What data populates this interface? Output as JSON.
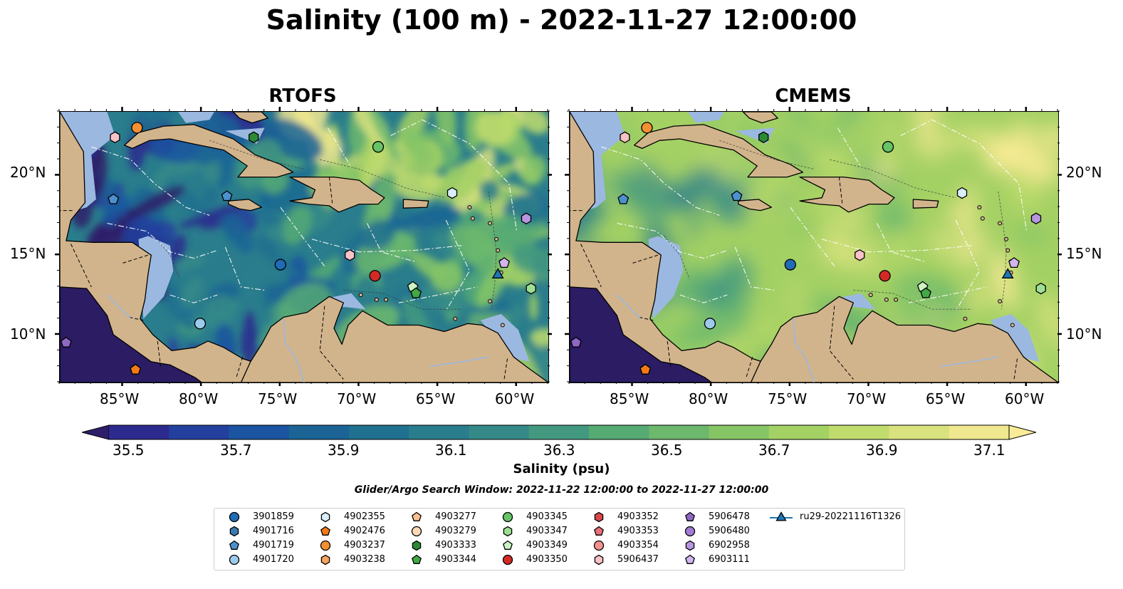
{
  "figure": {
    "title": "Salinity (100 m) - 2022-11-27 12:00:00",
    "search_window": "Glider/Argo Search Window: 2022-11-22 12:00:00 to 2022-11-27 12:00:00"
  },
  "panels": [
    {
      "title": "RTOFS",
      "model": "rtofs"
    },
    {
      "title": "CMEMS",
      "model": "cmems"
    }
  ],
  "axes": {
    "lon_ticks": [
      "85°W",
      "80°W",
      "75°W",
      "70°W",
      "65°W",
      "60°W"
    ],
    "lat_ticks": [
      "20°N",
      "15°N",
      "10°N"
    ],
    "lon_range": [
      -89,
      -58
    ],
    "lat_range": [
      7,
      24
    ]
  },
  "colorbar": {
    "label": "Salinity (psu)",
    "tick_labels": [
      "35.5",
      "35.7",
      "35.9",
      "36.1",
      "36.3",
      "36.5",
      "36.7",
      "36.9",
      "37.1"
    ],
    "range": [
      35.4,
      37.2
    ],
    "step": 0.1,
    "colors": [
      "#2e1e6a",
      "#2c2a8e",
      "#23409e",
      "#1b54a0",
      "#1b6495",
      "#20708f",
      "#2a7d8c",
      "#358a88",
      "#43997f",
      "#56aa74",
      "#6cb86d",
      "#86c566",
      "#a4d164",
      "#c0dc6c",
      "#d8e27e",
      "#f0e88f",
      "#faeb98"
    ],
    "extend": "both"
  },
  "colors": {
    "land": "#d2b48c",
    "ocean_shallow": "#9bb8e0",
    "deep_outside": "#2b1c63",
    "cuba": "#d2b48c"
  },
  "legend": [
    {
      "id": "3901859",
      "marker": "circle",
      "color": "#1f6bb5"
    },
    {
      "id": "4901716",
      "marker": "hexagon",
      "color": "#3a78b0"
    },
    {
      "id": "4901719",
      "marker": "pentagon",
      "color": "#4d90cf"
    },
    {
      "id": "4901720",
      "marker": "circle",
      "color": "#9ccbec"
    },
    {
      "id": "4902355",
      "marker": "hexagon",
      "color": "#d8eefa"
    },
    {
      "id": "4902476",
      "marker": "pentagon",
      "color": "#f37b16"
    },
    {
      "id": "4903237",
      "marker": "circle",
      "color": "#f49033"
    },
    {
      "id": "4903238",
      "marker": "hexagon",
      "color": "#f7a35c"
    },
    {
      "id": "4903277",
      "marker": "pentagon",
      "color": "#f9c08d"
    },
    {
      "id": "4903279",
      "marker": "circle",
      "color": "#fbd8b8"
    },
    {
      "id": "4903333",
      "marker": "hexagon",
      "color": "#2a8a36"
    },
    {
      "id": "4903344",
      "marker": "pentagon",
      "color": "#43a845"
    },
    {
      "id": "4903345",
      "marker": "circle",
      "color": "#66c366"
    },
    {
      "id": "4903347",
      "marker": "hexagon",
      "color": "#9fdf94"
    },
    {
      "id": "4903349",
      "marker": "pentagon",
      "color": "#ccf3c2"
    },
    {
      "id": "4903350",
      "marker": "circle",
      "color": "#d42a26"
    },
    {
      "id": "4903352",
      "marker": "hexagon",
      "color": "#d9474b"
    },
    {
      "id": "4903353",
      "marker": "pentagon",
      "color": "#e8707a"
    },
    {
      "id": "4903354",
      "marker": "circle",
      "color": "#f2928d"
    },
    {
      "id": "5906437",
      "marker": "hexagon",
      "color": "#f8c2c6"
    },
    {
      "id": "5906478",
      "marker": "pentagon",
      "color": "#8f68c3"
    },
    {
      "id": "5906480",
      "marker": "circle",
      "color": "#a17bd4"
    },
    {
      "id": "6902958",
      "marker": "hexagon",
      "color": "#b895e0"
    },
    {
      "id": "6903111",
      "marker": "pentagon",
      "color": "#d2b4ee"
    },
    {
      "id": "ru29-20221116T1326",
      "marker": "triangle-line",
      "color": "#1f77b4"
    }
  ],
  "platforms": [
    {
      "id": "5906437",
      "lon": -85.5,
      "lat": 22.4
    },
    {
      "id": "4903237",
      "lon": -84.1,
      "lat": 23.0
    },
    {
      "id": "4903333",
      "lon": -76.7,
      "lat": 22.4
    },
    {
      "id": "4903345",
      "lon": -68.8,
      "lat": 21.8
    },
    {
      "id": "4901719",
      "lon": -85.6,
      "lat": 18.5
    },
    {
      "id": "4901719",
      "lon": -78.4,
      "lat": 18.7
    },
    {
      "id": "4902355",
      "lon": -64.1,
      "lat": 18.9
    },
    {
      "id": "6902958",
      "lon": -59.4,
      "lat": 17.3
    },
    {
      "id": "3901859",
      "lon": -75.0,
      "lat": 14.4
    },
    {
      "id": "5906437",
      "lon": -70.6,
      "lat": 15.0
    },
    {
      "id": "4903350",
      "lon": -69.0,
      "lat": 13.7
    },
    {
      "id": "6903111",
      "lon": -60.8,
      "lat": 14.5
    },
    {
      "id": "ru29-20221116T1326",
      "lon": -61.2,
      "lat": 13.8
    },
    {
      "id": "4903349",
      "lon": -66.6,
      "lat": 13.0
    },
    {
      "id": "4903344",
      "lon": -66.4,
      "lat": 12.6
    },
    {
      "id": "4903347",
      "lon": -59.1,
      "lat": 12.9
    },
    {
      "id": "4901720",
      "lon": -80.1,
      "lat": 10.7
    },
    {
      "id": "5906478",
      "lon": -88.6,
      "lat": 9.5
    },
    {
      "id": "4902476",
      "lon": -84.2,
      "lat": 7.8
    }
  ]
}
